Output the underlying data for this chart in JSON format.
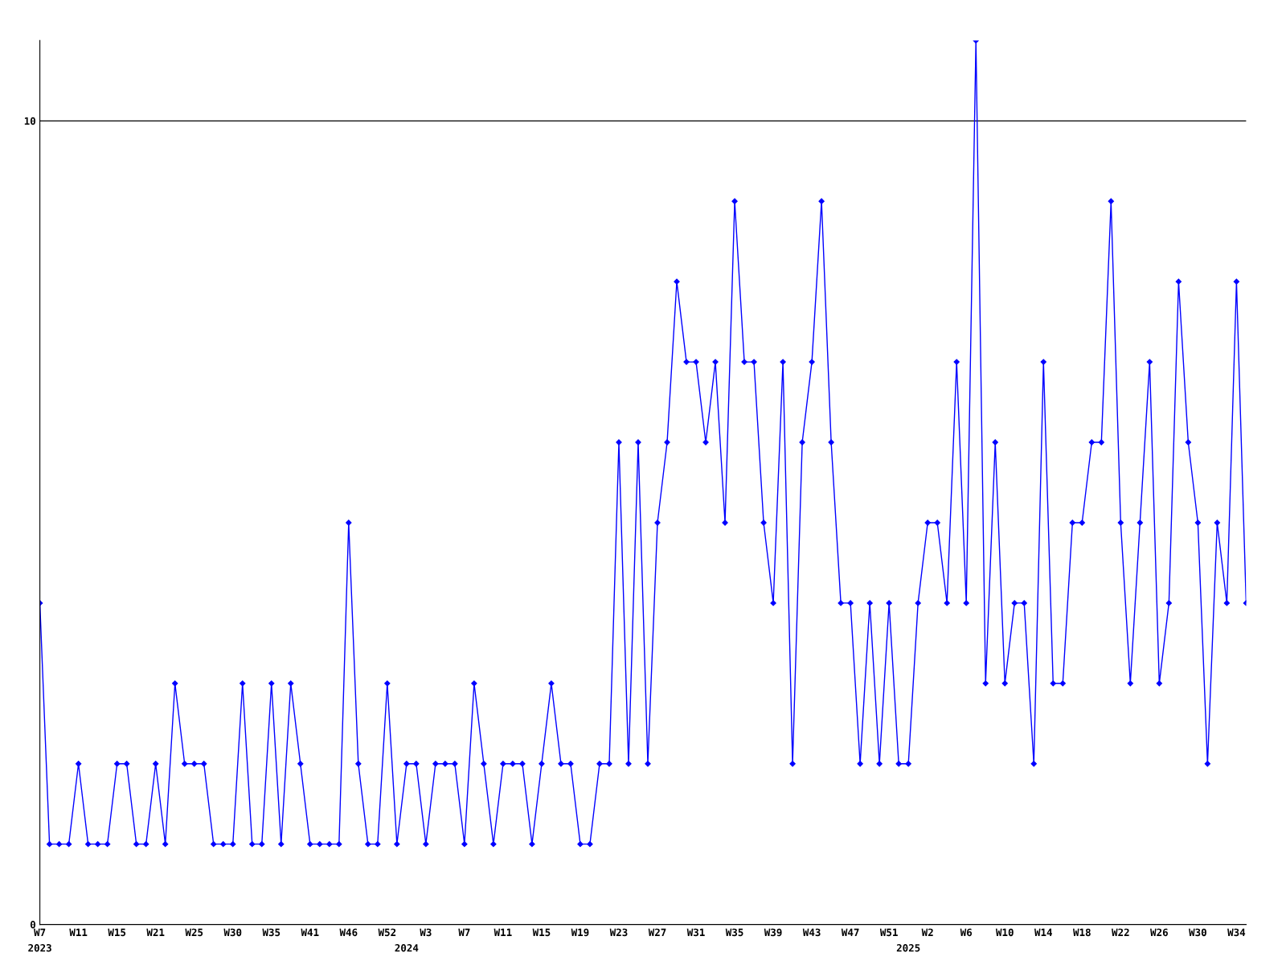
{
  "chart_data": {
    "type": "line",
    "categories": [
      "W7",
      null,
      null,
      null,
      "W11",
      null,
      null,
      null,
      "W15",
      null,
      null,
      null,
      "W21",
      null,
      null,
      null,
      "W25",
      null,
      null,
      null,
      "W30",
      null,
      null,
      null,
      "W35",
      null,
      null,
      null,
      "W41",
      null,
      null,
      null,
      "W46",
      null,
      null,
      null,
      "W52",
      null,
      null,
      null,
      "W3",
      null,
      null,
      null,
      "W7",
      null,
      null,
      null,
      "W11",
      null,
      null,
      null,
      "W15",
      null,
      null,
      null,
      "W19",
      null,
      null,
      null,
      "W23",
      null,
      null,
      null,
      "W27",
      null,
      null,
      null,
      "W31",
      null,
      null,
      null,
      "W35",
      null,
      null,
      null,
      "W39",
      null,
      null,
      null,
      "W43",
      null,
      null,
      null,
      "W47",
      null,
      null,
      null,
      "W51",
      null,
      null,
      null,
      "W2",
      null,
      null,
      null,
      "W6",
      null,
      null,
      null,
      "W10",
      null,
      null,
      null,
      "W14",
      null,
      null,
      null,
      "W18",
      null,
      null,
      null,
      "W22",
      null,
      null,
      null,
      "W26",
      null,
      null,
      null,
      "W30",
      null,
      null,
      null,
      "W34",
      null
    ],
    "series": [
      {
        "color": "#0000ff",
        "values": [
          4,
          1,
          1,
          1,
          2,
          1,
          1,
          1,
          2,
          2,
          1,
          1,
          2,
          1,
          3,
          2,
          2,
          2,
          1,
          1,
          1,
          3,
          1,
          1,
          3,
          1,
          3,
          2,
          1,
          1,
          1,
          1,
          5,
          2,
          1,
          1,
          3,
          1,
          2,
          2,
          1,
          2,
          2,
          2,
          1,
          3,
          2,
          1,
          2,
          2,
          2,
          1,
          2,
          3,
          2,
          2,
          1,
          1,
          2,
          2,
          6,
          2,
          6,
          2,
          5,
          6,
          8,
          7,
          7,
          6,
          7,
          5,
          9,
          7,
          7,
          5,
          4,
          7,
          2,
          6,
          7,
          9,
          6,
          4,
          4,
          2,
          4,
          2,
          4,
          2,
          2,
          4,
          5,
          5,
          4,
          7,
          4,
          11,
          3,
          6,
          3,
          4,
          4,
          2,
          7,
          3,
          3,
          5,
          5,
          6,
          6,
          9,
          5,
          3,
          5,
          7,
          3,
          4,
          8,
          6,
          5,
          2,
          5,
          4,
          8,
          4
        ]
      }
    ],
    "ylim": [
      0,
      11
    ],
    "yticks": [
      0,
      10
    ],
    "grid": "y",
    "marker": "diamond",
    "line_style": "solid",
    "annotations": [
      "2023",
      "2024",
      "2025"
    ]
  }
}
